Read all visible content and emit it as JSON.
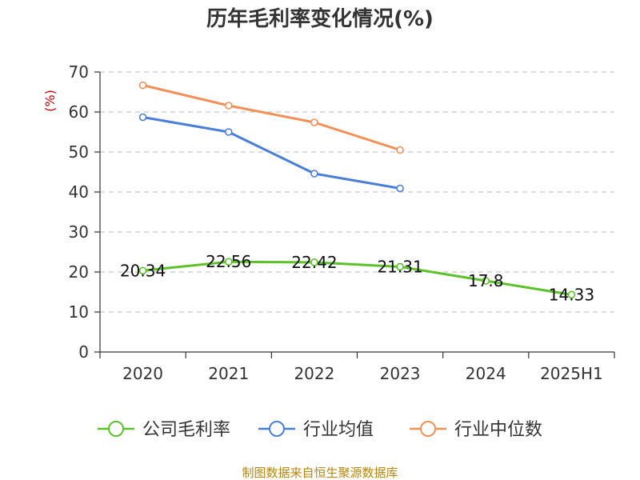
{
  "chart_data": {
    "type": "line",
    "title": "历年毛利率变化情况(%)",
    "ylabel": "(%)",
    "xlabel": "",
    "categories": [
      "2020",
      "2021",
      "2022",
      "2023",
      "2024",
      "2025H1"
    ],
    "ylim": [
      0,
      70
    ],
    "yticks": [
      "0",
      "10",
      "20",
      "30",
      "40",
      "50",
      "60",
      "70"
    ],
    "grid": "horizontal-dashed",
    "legend_position": "bottom",
    "series": [
      {
        "name": "公司毛利率",
        "color": "#5cc22a",
        "values": [
          20.34,
          22.56,
          22.42,
          21.31,
          17.8,
          14.33
        ],
        "labels": [
          "20.34",
          "22.56",
          "22.42",
          "21.31",
          "17.8",
          "14.33"
        ]
      },
      {
        "name": "行业均值",
        "color": "#4a7fd9",
        "values": [
          58.7,
          55.0,
          44.6,
          40.9,
          null,
          null
        ]
      },
      {
        "name": "行业中位数",
        "color": "#f48f57",
        "values": [
          66.7,
          61.6,
          57.4,
          50.5,
          null,
          null
        ]
      }
    ],
    "source": "制图数据来自恒生聚源数据库"
  }
}
